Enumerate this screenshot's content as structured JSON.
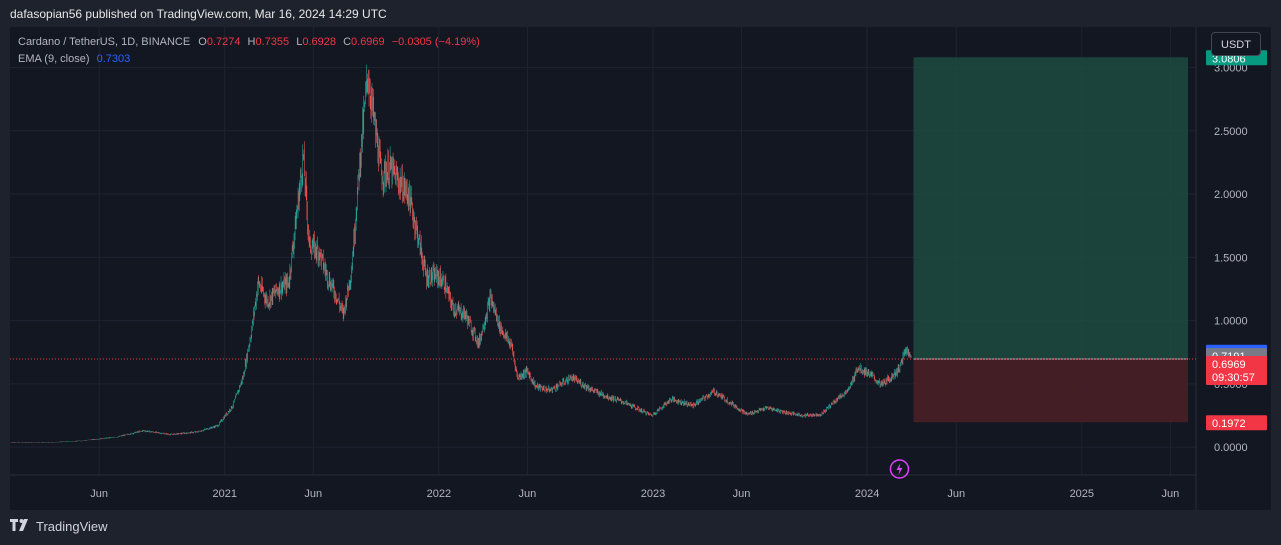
{
  "header": {
    "publisher_line": "dafasopian56 published on TradingView.com, Mar 16, 2024 14:29 UTC"
  },
  "legend": {
    "symbol": "Cardano / TetherUS, 1D, BINANCE",
    "open_label": "O",
    "open": "0.7274",
    "high_label": "H",
    "high": "0.7355",
    "low_label": "L",
    "low": "0.6928",
    "close_label": "C",
    "close": "0.6969",
    "change": "−0.0305 (−4.19%)",
    "ema_label": "EMA (9, close)",
    "ema_value": "0.7303"
  },
  "currency_button": "USDT",
  "footer": {
    "brand": "TradingView",
    "logo_icon": "tradingview-logo-icon"
  },
  "colors": {
    "up": "#26a69a",
    "down": "#ef5350",
    "ema": "#2962ff",
    "profit_zone": "#1e4a41",
    "loss_zone": "#4a1f26",
    "current_price": "#f23645"
  },
  "chart_data": {
    "type": "candlestick",
    "title": "Cardano / TetherUS, 1D, BINANCE",
    "ylim": [
      -0.22,
      3.32
    ],
    "y_ticks": [
      "3.0000",
      "2.5000",
      "2.0000",
      "1.5000",
      "1.0000",
      "0.5000",
      "0.0000"
    ],
    "y_tick_values": [
      3.0,
      2.5,
      2.0,
      1.5,
      1.0,
      0.5,
      0.0
    ],
    "x_ticks": [
      "Jun",
      "2021",
      "Jun",
      "2022",
      "Jun",
      "2023",
      "Jun",
      "2024",
      "Jun",
      "2025",
      "Jun"
    ],
    "x_tick_dates": [
      "2020-06-01",
      "2021-01-01",
      "2021-06-01",
      "2022-01-01",
      "2022-06-01",
      "2023-01-01",
      "2023-06-01",
      "2024-01-01",
      "2024-06-01",
      "2025-01-01",
      "2025-06-01"
    ],
    "price_path": [
      [
        "2020-01-01",
        0.04
      ],
      [
        "2020-03-01",
        0.035
      ],
      [
        "2020-05-01",
        0.05
      ],
      [
        "2020-07-01",
        0.08
      ],
      [
        "2020-08-15",
        0.13
      ],
      [
        "2020-10-01",
        0.1
      ],
      [
        "2020-11-15",
        0.12
      ],
      [
        "2020-12-20",
        0.17
      ],
      [
        "2021-01-15",
        0.33
      ],
      [
        "2021-02-01",
        0.55
      ],
      [
        "2021-02-15",
        0.9
      ],
      [
        "2021-02-27",
        1.3
      ],
      [
        "2021-03-15",
        1.15
      ],
      [
        "2021-04-01",
        1.25
      ],
      [
        "2021-04-20",
        1.3
      ],
      [
        "2021-05-15",
        2.3
      ],
      [
        "2021-05-25",
        1.6
      ],
      [
        "2021-06-10",
        1.55
      ],
      [
        "2021-06-25",
        1.35
      ],
      [
        "2021-07-10",
        1.2
      ],
      [
        "2021-07-22",
        1.05
      ],
      [
        "2021-08-05",
        1.4
      ],
      [
        "2021-08-20",
        2.3
      ],
      [
        "2021-09-02",
        2.95
      ],
      [
        "2021-09-12",
        2.6
      ],
      [
        "2021-09-25",
        2.15
      ],
      [
        "2021-10-10",
        2.2
      ],
      [
        "2021-10-25",
        2.1
      ],
      [
        "2021-11-10",
        2.0
      ],
      [
        "2021-11-25",
        1.7
      ],
      [
        "2021-12-10",
        1.35
      ],
      [
        "2021-12-30",
        1.35
      ],
      [
        "2022-01-10",
        1.3
      ],
      [
        "2022-01-25",
        1.1
      ],
      [
        "2022-02-15",
        1.05
      ],
      [
        "2022-03-10",
        0.82
      ],
      [
        "2022-03-30",
        1.18
      ],
      [
        "2022-04-15",
        0.95
      ],
      [
        "2022-05-05",
        0.8
      ],
      [
        "2022-05-15",
        0.55
      ],
      [
        "2022-06-01",
        0.6
      ],
      [
        "2022-06-15",
        0.48
      ],
      [
        "2022-07-10",
        0.45
      ],
      [
        "2022-08-15",
        0.55
      ],
      [
        "2022-09-20",
        0.45
      ],
      [
        "2022-10-15",
        0.4
      ],
      [
        "2022-11-10",
        0.36
      ],
      [
        "2022-12-30",
        0.25
      ],
      [
        "2023-02-01",
        0.38
      ],
      [
        "2023-03-10",
        0.33
      ],
      [
        "2023-04-15",
        0.44
      ],
      [
        "2023-05-10",
        0.36
      ],
      [
        "2023-06-10",
        0.26
      ],
      [
        "2023-07-15",
        0.31
      ],
      [
        "2023-08-20",
        0.27
      ],
      [
        "2023-09-15",
        0.25
      ],
      [
        "2023-10-15",
        0.26
      ],
      [
        "2023-11-10",
        0.38
      ],
      [
        "2023-12-01",
        0.45
      ],
      [
        "2023-12-15",
        0.63
      ],
      [
        "2024-01-05",
        0.58
      ],
      [
        "2024-01-25",
        0.49
      ],
      [
        "2024-02-10",
        0.55
      ],
      [
        "2024-02-25",
        0.62
      ],
      [
        "2024-03-05",
        0.75
      ],
      [
        "2024-03-12",
        0.77
      ],
      [
        "2024-03-16",
        0.6969
      ]
    ],
    "current_price": "0.6969",
    "countdown": "09:30:57",
    "ema_value": "0.7303",
    "prev_close_label": "0.7191",
    "position": {
      "type": "long",
      "start_date": "2024-03-20",
      "end_date": "2025-07-01",
      "entry": 0.6969,
      "target": "3.0806",
      "stop": "0.1972"
    }
  }
}
